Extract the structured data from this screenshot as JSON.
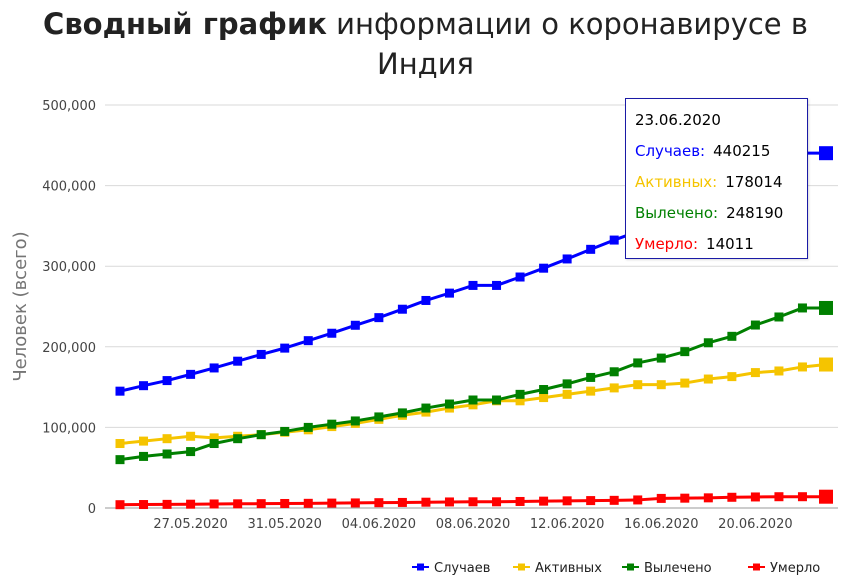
{
  "title": {
    "bold": "Сводный график",
    "rest": " информации о коронавирусе в Индия"
  },
  "tooltip": {
    "date": "23.06.2020",
    "rows": [
      {
        "label": "Случаев:",
        "value": "440215",
        "color": "#0000ff"
      },
      {
        "label": "Активных:",
        "value": "178014",
        "color": "#f5c400"
      },
      {
        "label": "Вылечено:",
        "value": "248190",
        "color": "#008000"
      },
      {
        "label": "Умерло:",
        "value": "14011",
        "color": "#ff0000"
      }
    ]
  },
  "chart_data": {
    "type": "line",
    "ylabel": "Человек (всего)",
    "xlabel": "",
    "ylim": [
      0,
      500000
    ],
    "yticks": [
      "0",
      "100,000",
      "200,000",
      "300,000",
      "400,000",
      "500,000"
    ],
    "grid": true,
    "legend_position": "bottom-right",
    "x": [
      "24.05.2020",
      "25.05.2020",
      "26.05.2020",
      "27.05.2020",
      "28.05.2020",
      "29.05.2020",
      "30.05.2020",
      "31.05.2020",
      "01.06.2020",
      "02.06.2020",
      "03.06.2020",
      "04.06.2020",
      "05.06.2020",
      "06.06.2020",
      "07.06.2020",
      "08.06.2020",
      "09.06.2020",
      "10.06.2020",
      "11.06.2020",
      "12.06.2020",
      "13.06.2020",
      "14.06.2020",
      "15.06.2020",
      "16.06.2020",
      "17.06.2020",
      "18.06.2020",
      "19.06.2020",
      "20.06.2020",
      "21.06.2020",
      "22.06.2020",
      "23.06.2020"
    ],
    "xtick_labels": [
      "27.05.2020",
      "31.05.2020",
      "04.06.2020",
      "08.06.2020",
      "12.06.2020",
      "16.06.2020",
      "20.06.2020"
    ],
    "series": [
      {
        "name": "Случаев",
        "color": "#0000ff",
        "values": [
          144950,
          151767,
          158086,
          165799,
          173763,
          182143,
          190535,
          198370,
          207615,
          216824,
          226713,
          236184,
          246628,
          257486,
          266598,
          276146,
          276146,
          286579,
          297535,
          308993,
          320922,
          332424,
          343091,
          354065,
          366946,
          380532,
          395048,
          410461,
          425282,
          440215,
          440215
        ]
      },
      {
        "name": "Активных",
        "color": "#f5c400",
        "values": [
          80000,
          83000,
          86000,
          89000,
          87000,
          89000,
          91000,
          94000,
          97000,
          101000,
          105000,
          110000,
          115000,
          119000,
          124000,
          128000,
          133000,
          133000,
          137000,
          141000,
          145000,
          149000,
          153000,
          153000,
          155000,
          160000,
          163000,
          168000,
          170000,
          175000,
          178014
        ]
      },
      {
        "name": "Вылечено",
        "color": "#008000",
        "values": [
          60000,
          64000,
          67000,
          70000,
          80000,
          86000,
          91000,
          95000,
          100000,
          104000,
          108000,
          113000,
          118000,
          124000,
          129000,
          134000,
          134000,
          141000,
          147000,
          154000,
          162000,
          169000,
          180000,
          186000,
          194000,
          205000,
          213000,
          227000,
          237000,
          248190,
          248190
        ]
      },
      {
        "name": "Умерло",
        "color": "#ff0000",
        "values": [
          4100,
          4300,
          4500,
          4700,
          5000,
          5200,
          5400,
          5600,
          5800,
          6100,
          6300,
          6600,
          6900,
          7200,
          7500,
          7700,
          7700,
          8100,
          8500,
          8900,
          9200,
          9500,
          10000,
          11900,
          12200,
          12600,
          13300,
          13700,
          14000,
          14011,
          14011
        ]
      }
    ]
  }
}
